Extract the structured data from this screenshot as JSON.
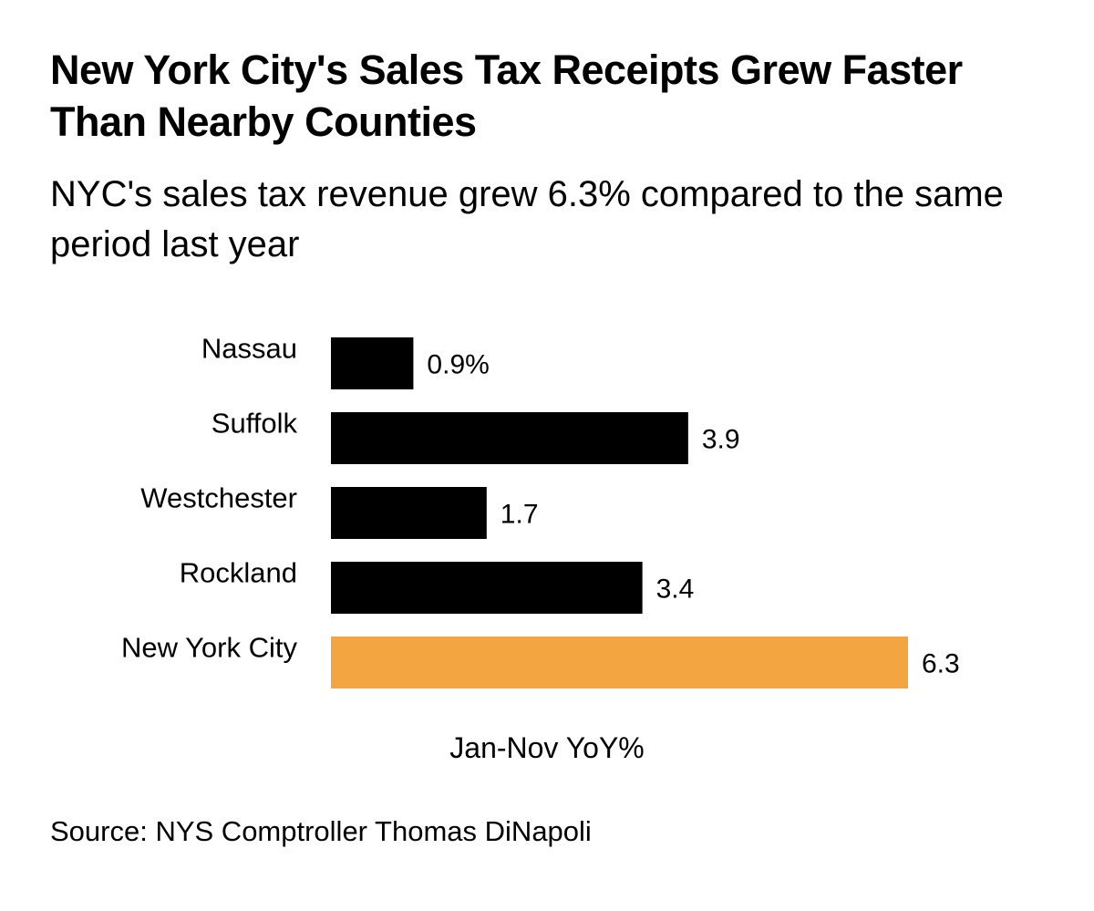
{
  "chart_data": {
    "type": "bar",
    "orientation": "horizontal",
    "title": "New York City's Sales Tax Receipts Grew Faster Than Nearby Counties",
    "subtitle": "NYC's sales tax revenue grew 6.3% compared to the same period last year",
    "categories": [
      "Nassau",
      "Suffolk",
      "Westchester",
      "Rockland",
      "New York City"
    ],
    "values": [
      0.9,
      3.9,
      1.7,
      3.4,
      6.3
    ],
    "value_labels": [
      "0.9%",
      "3.9",
      "1.7",
      "3.4",
      "6.3"
    ],
    "bar_colors": [
      "#000000",
      "#000000",
      "#000000",
      "#000000",
      "#f2a541"
    ],
    "xlabel": "Jan-Nov YoY%",
    "ylabel": "",
    "xlim": [
      0,
      6.3
    ],
    "grid": false,
    "source": "Source: NYS Comptroller Thomas DiNapoli"
  }
}
